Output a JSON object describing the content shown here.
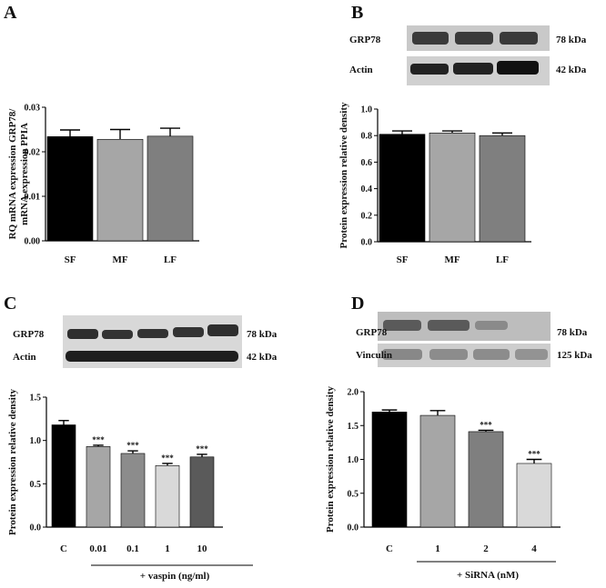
{
  "chart_data": [
    {
      "panel": "A",
      "type": "bar",
      "categories": [
        "SF",
        "MF",
        "LF"
      ],
      "values": [
        0.0234,
        0.0228,
        0.0235
      ],
      "errors": [
        0.0015,
        0.0022,
        0.0018
      ],
      "ylabel_lines": [
        "RQ mRNA expression GRP78/",
        "mRNA expression PPIA"
      ],
      "ylim": [
        0,
        0.03
      ],
      "yticks": [
        "0.00",
        "0.01",
        "0.02",
        "0.03"
      ],
      "colors": [
        "#000000",
        "#a6a6a6",
        "#7f7f7f"
      ],
      "significance": [
        "",
        "",
        ""
      ]
    },
    {
      "panel": "B",
      "type": "bar",
      "categories": [
        "SF",
        "MF",
        "LF"
      ],
      "values": [
        0.81,
        0.82,
        0.8
      ],
      "errors": [
        0.025,
        0.015,
        0.02
      ],
      "ylabel": "Protein expression relative density",
      "ylim": [
        0,
        1.0
      ],
      "yticks": [
        "0.0",
        "0.2",
        "0.4",
        "0.6",
        "0.8",
        "1.0"
      ],
      "colors": [
        "#000000",
        "#a6a6a6",
        "#7f7f7f"
      ],
      "significance": [
        "",
        "",
        ""
      ],
      "blot": {
        "rows": [
          "GRP78",
          "Actin"
        ],
        "kda": [
          "78 kDa",
          "42 kDa"
        ]
      }
    },
    {
      "panel": "C",
      "type": "bar",
      "categories": [
        "C",
        "0.01",
        "0.1",
        "1",
        "10"
      ],
      "values": [
        1.18,
        0.93,
        0.85,
        0.71,
        0.81
      ],
      "errors": [
        0.05,
        0.015,
        0.03,
        0.025,
        0.03
      ],
      "ylabel": "Protein expression relative density",
      "xlabel": "+ vaspin (ng/ml)",
      "ylim": [
        0,
        1.5
      ],
      "yticks": [
        "0.0",
        "0.5",
        "1.0",
        "1.5"
      ],
      "colors": [
        "#000000",
        "#a6a6a6",
        "#8c8c8c",
        "#d9d9d9",
        "#5a5a5a"
      ],
      "significance": [
        "",
        "***",
        "***",
        "***",
        "***"
      ],
      "blot": {
        "rows": [
          "GRP78",
          "Actin"
        ],
        "kda": [
          "78 kDa",
          "42 kDa"
        ]
      }
    },
    {
      "panel": "D",
      "type": "bar",
      "categories": [
        "C",
        "1",
        "2",
        "4"
      ],
      "values": [
        1.7,
        1.65,
        1.41,
        0.94
      ],
      "errors": [
        0.03,
        0.07,
        0.02,
        0.06
      ],
      "ylabel": "Protein expression relative density",
      "xlabel": "+ SiRNA (nM)",
      "ylim": [
        0,
        2.0
      ],
      "yticks": [
        "0.0",
        "0.5",
        "1.0",
        "1.5",
        "2.0"
      ],
      "colors": [
        "#000000",
        "#a6a6a6",
        "#7f7f7f",
        "#d9d9d9"
      ],
      "significance": [
        "",
        "",
        "***",
        "***"
      ],
      "blot": {
        "rows": [
          "GRP78",
          "Vinculin"
        ],
        "kda": [
          "78 kDa",
          "125 kDa"
        ]
      }
    }
  ]
}
